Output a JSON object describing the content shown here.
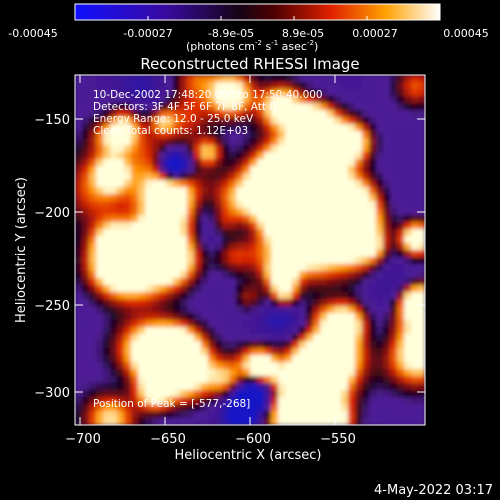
{
  "colorbar": {
    "ticks": [
      "-0.00045",
      "-0.00027",
      "-8.9e-05",
      "8.9e-05",
      "0.00027",
      "0.00045"
    ],
    "unit_main": "(photons cm",
    "unit_exp1": "-2",
    "unit_mid": " s",
    "unit_exp2": "-1",
    "unit_mid2": " asec",
    "unit_exp3": "-2",
    "unit_end": ")"
  },
  "plot": {
    "title": "Reconstructed RHESSI Image",
    "xlabel": "Heliocentric X (arcsec)",
    "ylabel": "Heliocentric Y (arcsec)",
    "xticks": [
      "−700",
      "−650",
      "−600",
      "−550"
    ],
    "yticks": [
      "−150",
      "−200",
      "−250",
      "−300"
    ]
  },
  "annotations": {
    "time": "10-Dec-2002 17:48:20.000 to 17:50:40.000",
    "detectors": "Detectors: 3F 4F 5F 6F 7F 8F, Att 0",
    "energy": "Energy Range: 12.0 - 25.0 keV",
    "method": "Clean    Total counts: 1.12E+03",
    "peak": "Position of Peak = [-577,-268]"
  },
  "footer": {
    "date": "4-May-2022 03:17"
  }
}
